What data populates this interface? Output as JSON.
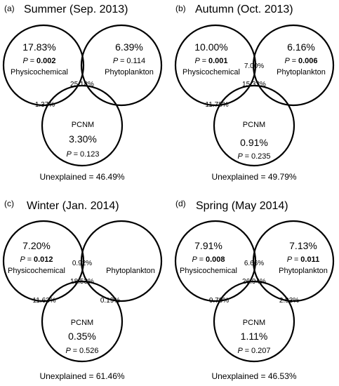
{
  "panels": [
    {
      "letter": "(a)",
      "title": "Summer (Sep. 2013)",
      "physicochemical": {
        "label": "Physicochemical",
        "pct": "17.83%",
        "p_prefix": "P = ",
        "p_value": "0.002",
        "p_bold": true
      },
      "phytoplankton": {
        "label": "Phytoplankton",
        "pct": "6.39%",
        "p_prefix": "P = ",
        "p_value": "0.114",
        "p_bold": false
      },
      "pcnm": {
        "label": "PCNM",
        "pct": "3.30%",
        "p_prefix": "P = ",
        "p_value": "0.123",
        "p_bold": false
      },
      "phys_phyto": "",
      "phys_pcnm": "1.37%",
      "phyto_pcnm": "",
      "all_three": "25.18%",
      "unexplained": "Unexplained = 46.49%"
    },
    {
      "letter": "(b)",
      "title": "Autumn (Oct. 2013)",
      "physicochemical": {
        "label": "Physicochemical",
        "pct": "10.00%",
        "p_prefix": "P = ",
        "p_value": "0.001",
        "p_bold": true
      },
      "phytoplankton": {
        "label": "Phytoplankton",
        "pct": "6.16%",
        "p_prefix": "P = ",
        "p_value": "0.006",
        "p_bold": true
      },
      "pcnm": {
        "label": "PCNM",
        "pct": "0.91%",
        "p_prefix": "P = ",
        "p_value": "0.235",
        "p_bold": false
      },
      "phys_phyto": "7.00%",
      "phys_pcnm": "11.78%",
      "phyto_pcnm": "",
      "all_three": "15.33%",
      "unexplained": "Unexplained = 49.79%"
    },
    {
      "letter": "(c)",
      "title": "Winter (Jan. 2014)",
      "physicochemical": {
        "label": "Physicochemical",
        "pct": "7.20%",
        "p_prefix": "P = ",
        "p_value": "0.012",
        "p_bold": true
      },
      "phytoplankton": {
        "label": "Phytoplankton",
        "pct": "",
        "p_prefix": "",
        "p_value": "",
        "p_bold": false
      },
      "pcnm": {
        "label": "PCNM",
        "pct": "0.35%",
        "p_prefix": "P = ",
        "p_value": "0.526",
        "p_bold": false
      },
      "phys_phyto": "0.92%",
      "phys_pcnm": "11.63%",
      "phyto_pcnm": "0.19%",
      "all_three": "18.53%",
      "unexplained": "Unexplained = 61.46%"
    },
    {
      "letter": "(d)",
      "title": "Spring (May 2014)",
      "physicochemical": {
        "label": "Physicochemical",
        "pct": "7.91%",
        "p_prefix": "P = ",
        "p_value": "0.008",
        "p_bold": true
      },
      "phytoplankton": {
        "label": "Phytoplankton",
        "pct": "7.13%",
        "p_prefix": "P = ",
        "p_value": "0.011",
        "p_bold": true
      },
      "pcnm": {
        "label": "PCNM",
        "pct": "1.11%",
        "p_prefix": "P = ",
        "p_value": "0.207",
        "p_bold": false
      },
      "phys_phyto": "6.66%",
      "phys_pcnm": "0.79%",
      "phyto_pcnm": "2.93%",
      "all_three": "26.94%",
      "unexplained": "Unexplained = 46.53%"
    }
  ]
}
